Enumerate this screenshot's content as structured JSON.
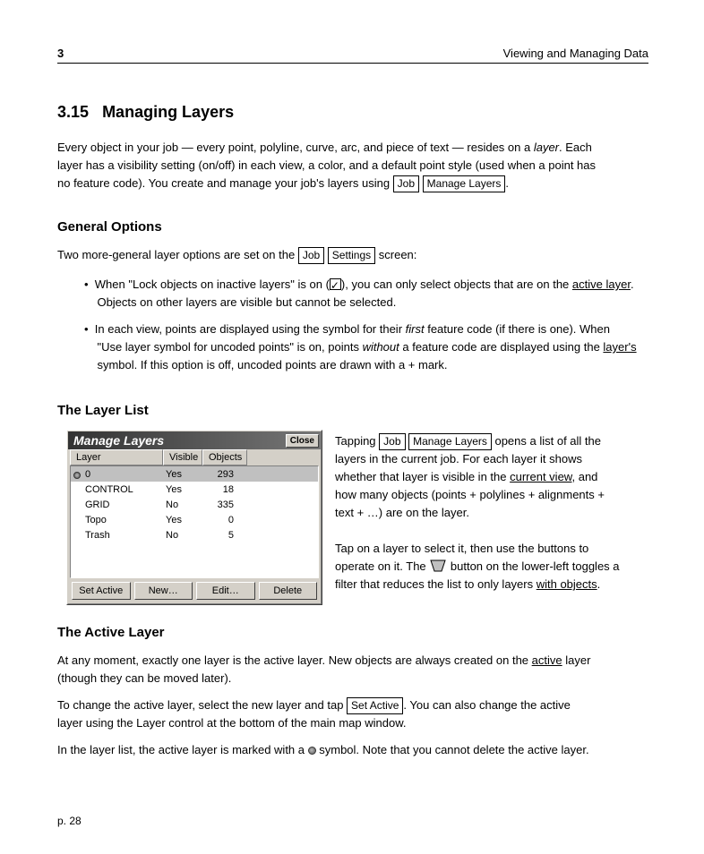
{
  "theme": {
    "page_bg": "#ffffff",
    "text_color": "#000000",
    "dialog_bg": "#d4d0c8",
    "dialog_title_bg_start": "#333333",
    "dialog_title_bg_end": "#777777",
    "dialog_title_fg": "#ffffff",
    "selection_bg": "#c0c0c0"
  },
  "header": {
    "chapter_num": "3",
    "chapter_title": "Viewing and Managing Data"
  },
  "section": {
    "number": "3.15",
    "title": "Managing Layers"
  },
  "para1": {
    "line1_pre": "Every object in your job — every point, polyline, curve, arc, and piece of text — resides on a ",
    "line1_em": "layer",
    "line1_post": ". Each",
    "line2": "layer has a visibility setting (on/off) in each view, a color, and a default point style (used when a point has",
    "line3_pre": "no feature code). You create and manage your job's layers using ",
    "menu_job": "Job",
    "menu_ml": "Manage Layers",
    "line3_post": "."
  },
  "subheading_general": "General Options",
  "para2": {
    "l1_pre": "Two more-general layer options are set on the ",
    "menu_job": "Job",
    "menu_settings": "Settings",
    "l1_post": " screen:",
    "bullet1_pre": "When \"Lock objects on inactive layers\" is on (",
    "bullet1_post": "), you can only select objects that are on the ",
    "bullet1_u": "active layer",
    "bullet1_end": ".",
    "bullet1_l2": "Objects on other layers are visible but cannot be selected.",
    "bullet2_pre": "In each view, points are displayed using the symbol for their ",
    "bullet2_em": "first",
    "bullet2_post": " feature code (if there is one). When",
    "bullet2_l2_pre": "\"Use layer symbol for uncoded points\" is on, points ",
    "bullet2_l2_em": "without",
    "bullet2_l2_post": " a feature code are displayed using the ",
    "bullet2_l2_u": "layer's",
    "bullet2_l3": "symbol. If this option is off, uncoded points are drawn with a + mark."
  },
  "list_title": "The Layer List",
  "list_para1_pre": "Tapping ",
  "list_para1_menu_job": "Job",
  "list_para1_menu_ml": "Manage Layers",
  "list_para1_post": " opens a list of all the",
  "list_para1_l2": "layers in the current job. For each layer it shows",
  "list_para1_l3_pre": "whether that layer is visible in the ",
  "list_para1_l3_u": "current view",
  "list_para1_l3_post": ", and",
  "list_para1_l4": "how many objects (points + polylines + alignments +",
  "list_para1_l5": "text + …) are on the layer.",
  "list_para2_l1": "Tap on a layer to select it, then use the buttons to",
  "list_para2_l2_pre": "operate on it. The ",
  "list_para2_l2_post": " button on the lower-left toggles a",
  "list_para2_l3_pre": "filter that reduces the list to only layers ",
  "list_para2_l3_u": "with objects",
  "list_para2_l3_post": ".",
  "active_title": "The Active Layer",
  "active_p_l1_pre": "At any moment, exactly one layer is the active layer. New objects are always created on the ",
  "active_p_l1_u": "active",
  "active_p_l1_post": " layer",
  "active_p_l2": "(though they can be moved later).",
  "active_p2_l1_pre": "To change the active layer, select the new layer and tap ",
  "active_btn": "Set Active",
  "active_p2_l1_post": ". You can also change the active",
  "active_p2_l2": "layer using the Layer control at the bottom of the main map window.",
  "active_p3_pre": "In the layer list, the active layer is marked with a ",
  "active_p3_post": " symbol. Note that you cannot delete the active layer.",
  "dialog": {
    "title": "Manage Layers",
    "close": "Close",
    "columns": {
      "layer": "Layer",
      "visible": "Visible",
      "objects": "Objects"
    },
    "col_widths": {
      "layer": 104,
      "visible": 44,
      "objects": 50
    },
    "rows": [
      {
        "name": "0",
        "visible": "Yes",
        "objects": 293,
        "active": true,
        "selected": true
      },
      {
        "name": "CONTROL",
        "visible": "Yes",
        "objects": 18,
        "active": false,
        "selected": false
      },
      {
        "name": "GRID",
        "visible": "No",
        "objects": 335,
        "active": false,
        "selected": false
      },
      {
        "name": "Topo",
        "visible": "Yes",
        "objects": 0,
        "active": false,
        "selected": false
      },
      {
        "name": "Trash",
        "visible": "No",
        "objects": 5,
        "active": false,
        "selected": false
      }
    ],
    "buttons": {
      "set_active": "Set Active",
      "new": "New…",
      "edit": "Edit…",
      "delete": "Delete"
    }
  },
  "page_number": "p. 28"
}
